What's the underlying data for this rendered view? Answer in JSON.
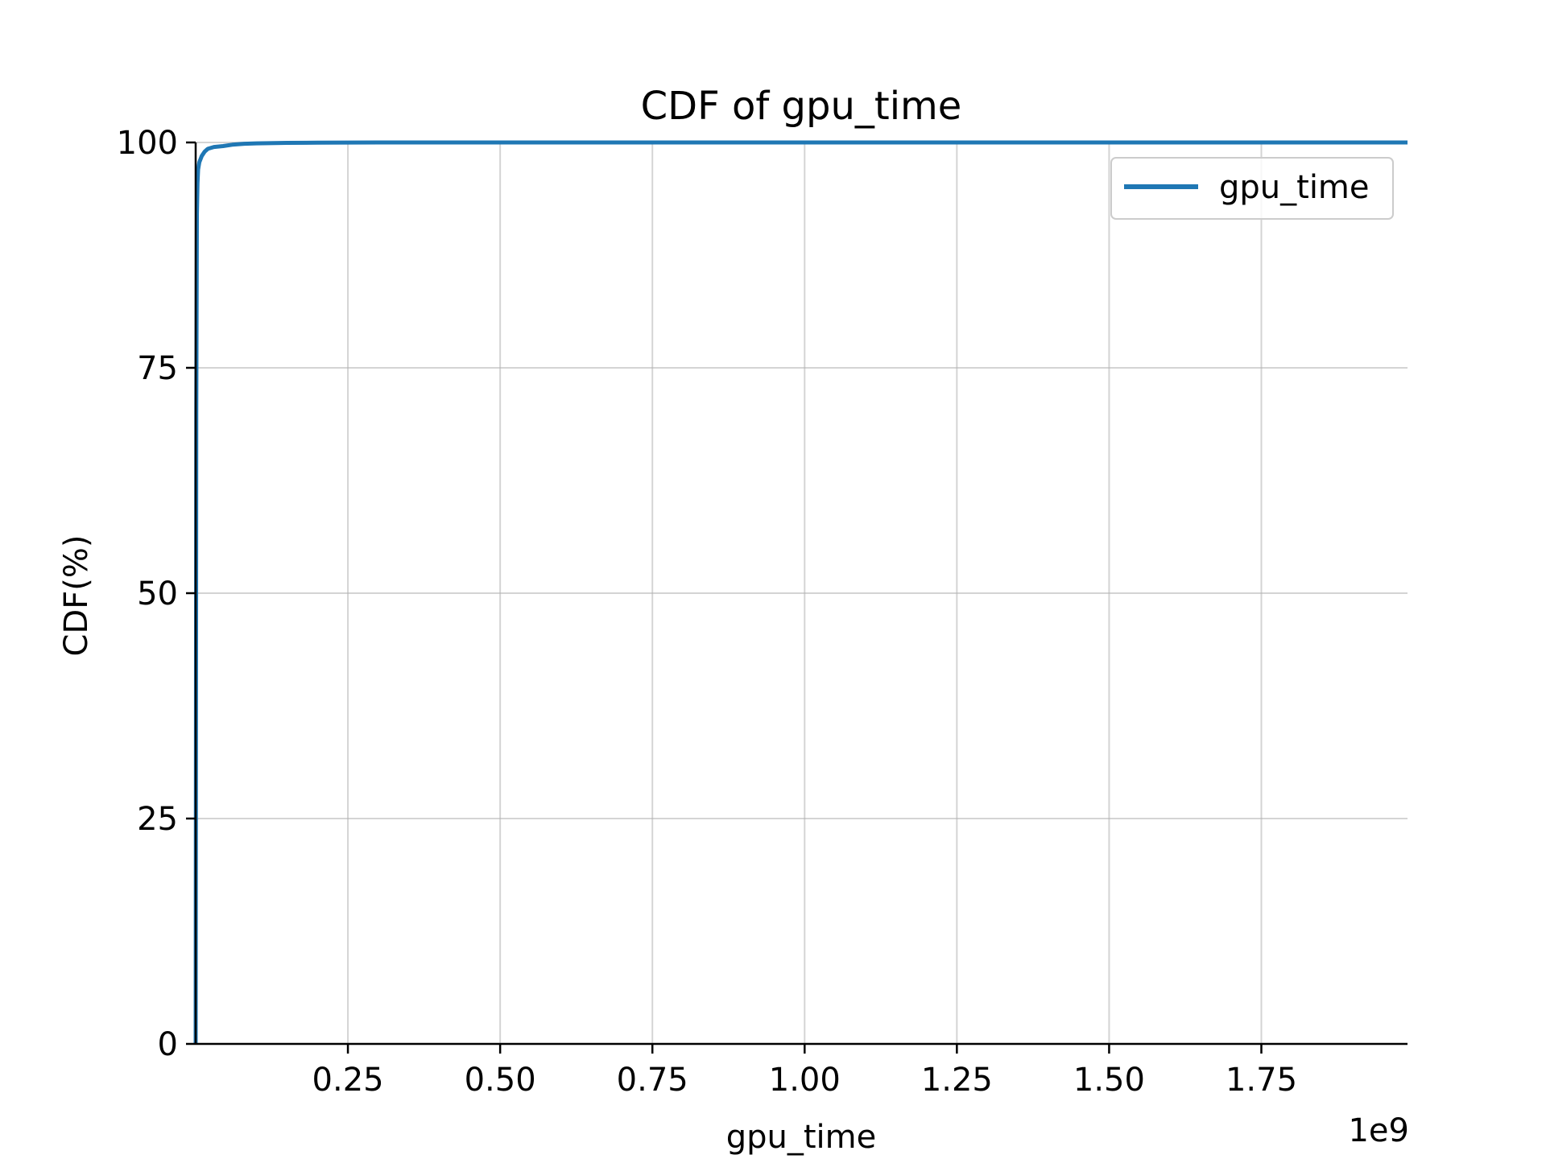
{
  "chart_data": {
    "type": "line",
    "title": "CDF of gpu_time",
    "xlabel": "gpu_time",
    "ylabel": "CDF(%)",
    "x_scale_label": "1e9",
    "xlim": [
      0,
      1.99
    ],
    "ylim": [
      0,
      100
    ],
    "x_ticks": [
      0.25,
      0.5,
      0.75,
      1.0,
      1.25,
      1.5,
      1.75
    ],
    "x_tick_labels": [
      "0.25",
      "0.50",
      "0.75",
      "1.00",
      "1.25",
      "1.50",
      "1.75"
    ],
    "y_ticks": [
      0,
      25,
      50,
      75,
      100
    ],
    "y_tick_labels": [
      "0",
      "25",
      "50",
      "75",
      "100"
    ],
    "grid": true,
    "legend_position": "top-right",
    "series": [
      {
        "name": "gpu_time",
        "color": "#1f77b4",
        "x": [
          0.0,
          0.001,
          0.002,
          0.003,
          0.004,
          0.006,
          0.01,
          0.015,
          0.02,
          0.03,
          0.045,
          0.06,
          0.08,
          0.1,
          0.15,
          0.2,
          0.3,
          0.5,
          1.0,
          1.5,
          1.99
        ],
        "y": [
          0.0,
          70.0,
          92.0,
          95.5,
          97.0,
          97.8,
          98.5,
          99.0,
          99.3,
          99.5,
          99.6,
          99.75,
          99.85,
          99.9,
          99.95,
          99.98,
          100.0,
          100.0,
          100.0,
          100.0,
          100.0
        ]
      }
    ]
  }
}
